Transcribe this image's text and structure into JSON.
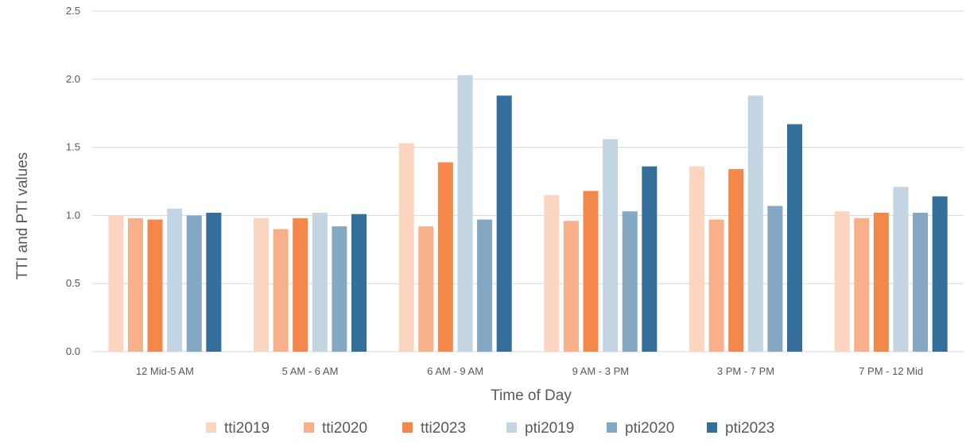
{
  "chart_data": {
    "type": "bar",
    "xlabel": "Time of Day",
    "ylabel": "TTI and PTI values",
    "ylim": [
      0,
      2.5
    ],
    "yticks": [
      "0.0",
      "0.5",
      "1.0",
      "1.5",
      "2.0",
      "2.5"
    ],
    "grid": true,
    "legend_position": "bottom",
    "categories": [
      "12 Mid-5 AM",
      "5 AM - 6 AM",
      "6 AM - 9 AM",
      "9 AM - 3 PM",
      "3 PM - 7 PM",
      "7 PM - 12 Mid"
    ],
    "series": [
      {
        "name": "tti2019",
        "color": "#fbd5c0",
        "values": [
          1.0,
          0.98,
          1.53,
          1.15,
          1.36,
          1.03
        ]
      },
      {
        "name": "tti2020",
        "color": "#f7b08a",
        "values": [
          0.98,
          0.9,
          0.92,
          0.96,
          0.97,
          0.98
        ]
      },
      {
        "name": "tti2023",
        "color": "#f4884a",
        "values": [
          0.97,
          0.98,
          1.39,
          1.18,
          1.34,
          1.02
        ]
      },
      {
        "name": "pti2019",
        "color": "#c3d4e2",
        "values": [
          1.05,
          1.02,
          2.03,
          1.56,
          1.88,
          1.21
        ]
      },
      {
        "name": "pti2020",
        "color": "#84a7c3",
        "values": [
          1.0,
          0.92,
          0.97,
          1.03,
          1.07,
          1.02
        ]
      },
      {
        "name": "pti2023",
        "color": "#346e9b",
        "values": [
          1.02,
          1.01,
          1.88,
          1.36,
          1.67,
          1.14
        ]
      }
    ]
  }
}
